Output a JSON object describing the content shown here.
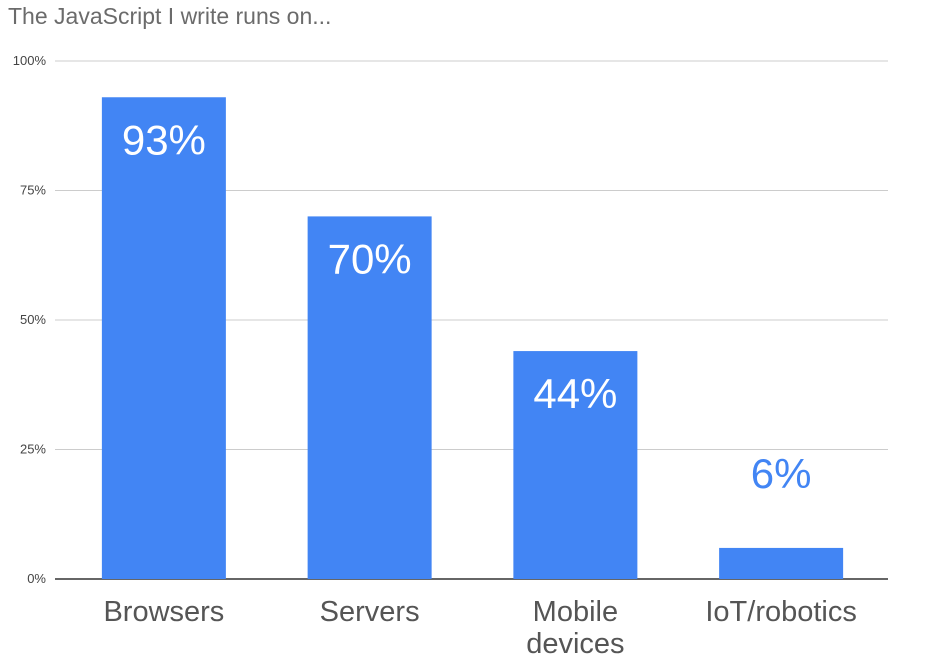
{
  "chart_data": {
    "type": "bar",
    "title": "The JavaScript I write runs on...",
    "categories": [
      [
        "Browsers"
      ],
      [
        "Servers"
      ],
      [
        "Mobile",
        "devices"
      ],
      [
        "IoT/robotics"
      ]
    ],
    "values": [
      93,
      70,
      44,
      6
    ],
    "data_labels": [
      "93%",
      "70%",
      "44%",
      "6%"
    ],
    "y_ticks": [
      {
        "value": 0,
        "label": "0%"
      },
      {
        "value": 25,
        "label": "25%"
      },
      {
        "value": 50,
        "label": "50%"
      },
      {
        "value": 75,
        "label": "75%"
      },
      {
        "value": 100,
        "label": "100%"
      }
    ],
    "ylim": [
      0,
      100
    ],
    "grid": true,
    "legend": "none",
    "colors": {
      "bar": "#4285f4",
      "label_inside": "#ffffff",
      "label_outside": "#4285f4"
    }
  }
}
